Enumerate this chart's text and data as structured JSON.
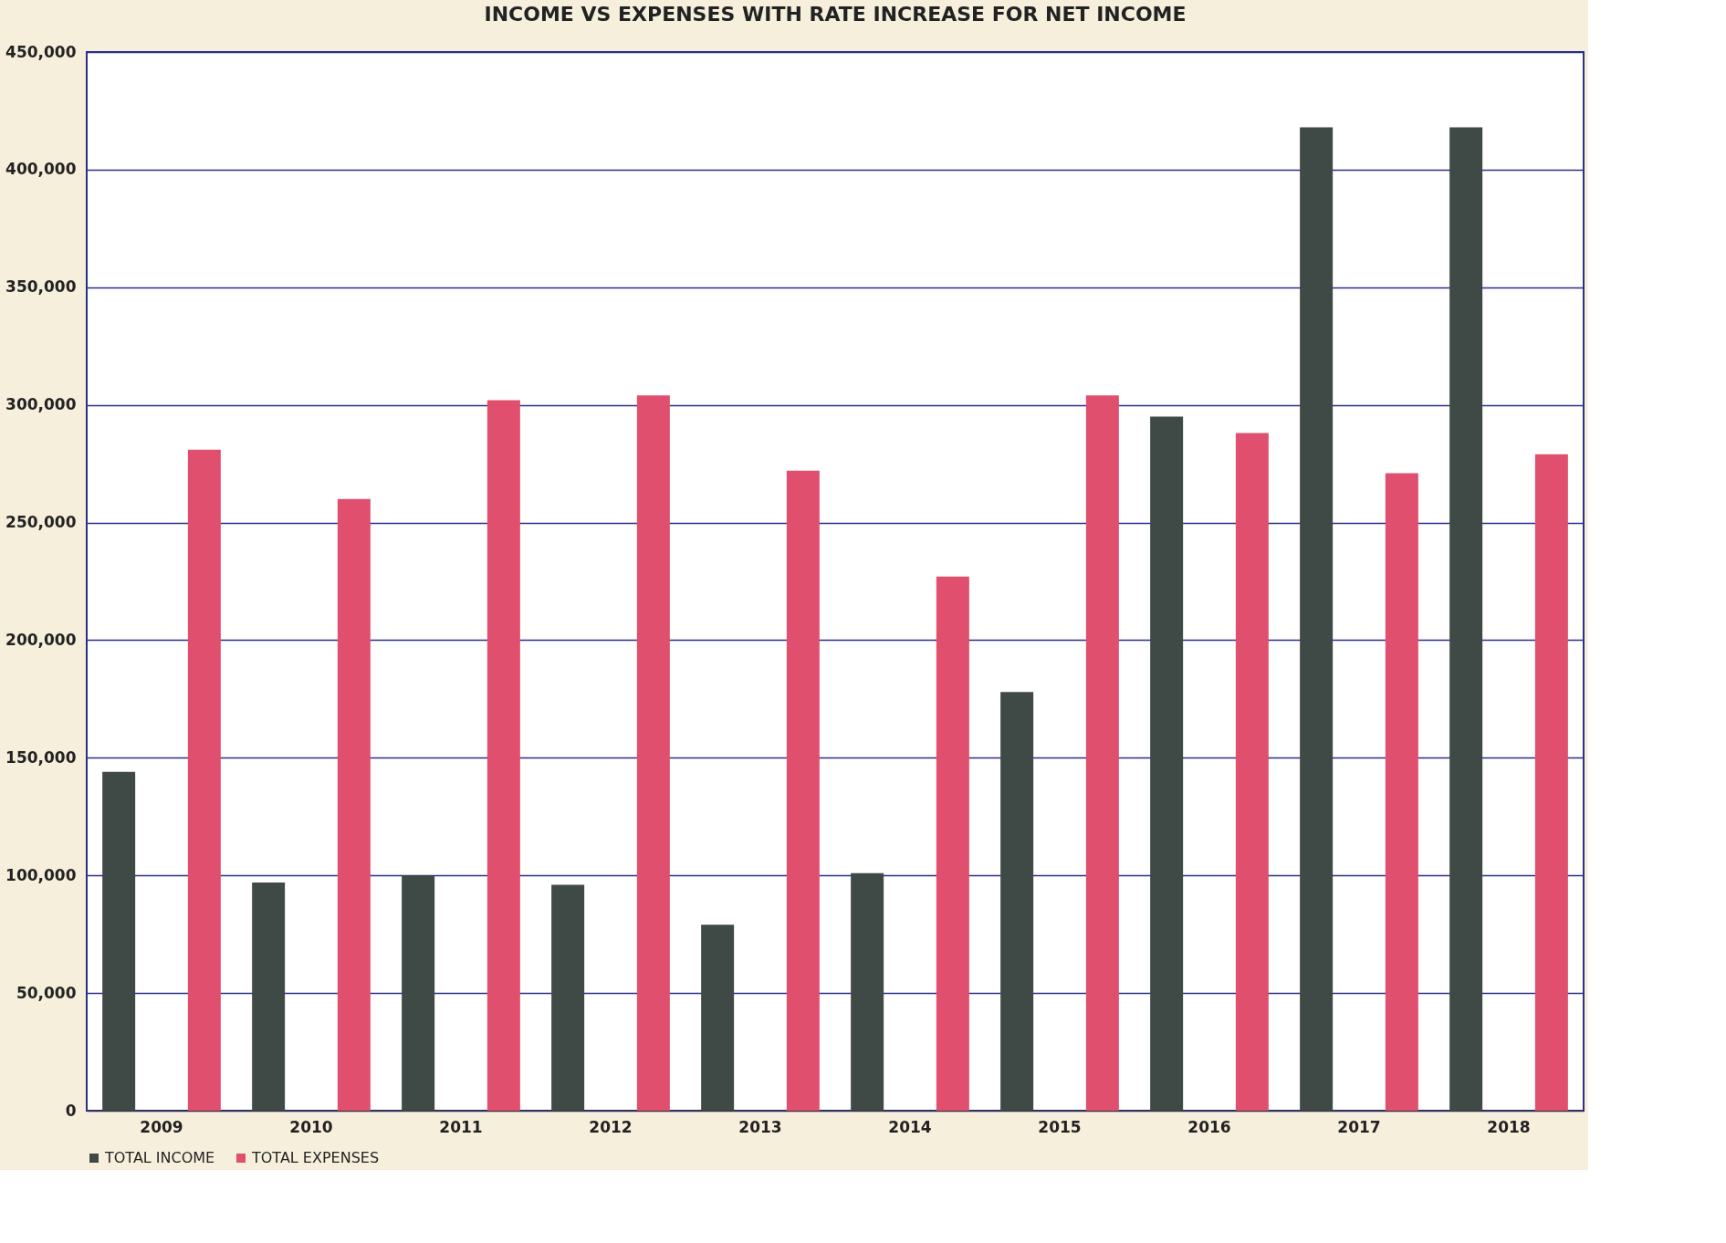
{
  "chart_data": {
    "type": "bar",
    "title": "INCOME VS EXPENSES WITH RATE INCREASE FOR NET INCOME",
    "categories": [
      "2009",
      "2010",
      "2011",
      "2012",
      "2013",
      "2014",
      "2015",
      "2016",
      "2017",
      "2018"
    ],
    "series": [
      {
        "name": "TOTAL INCOME",
        "color": "#3f4a46",
        "values": [
          144000,
          97000,
          100000,
          96000,
          79000,
          101000,
          178000,
          295000,
          418000,
          418000
        ]
      },
      {
        "name": "TOTAL EXPENSES",
        "color": "#e0506e",
        "values": [
          281000,
          260000,
          302000,
          304000,
          272000,
          227000,
          304000,
          288000,
          271000,
          279000
        ]
      }
    ],
    "ylim": [
      0,
      450000
    ],
    "yticks": [
      {
        "value": 0,
        "label": "0"
      },
      {
        "value": 50000,
        "label": "50,000"
      },
      {
        "value": 100000,
        "label": "100,000"
      },
      {
        "value": 150000,
        "label": "150,000"
      },
      {
        "value": 200000,
        "label": "200,000"
      },
      {
        "value": 250000,
        "label": "250,000"
      },
      {
        "value": 300000,
        "label": "300,000"
      },
      {
        "value": 350000,
        "label": "350,000"
      },
      {
        "value": 400000,
        "label": "400,000"
      },
      {
        "value": 450000,
        "label": "450,000"
      }
    ],
    "grid": "y",
    "legend": "bottom"
  }
}
